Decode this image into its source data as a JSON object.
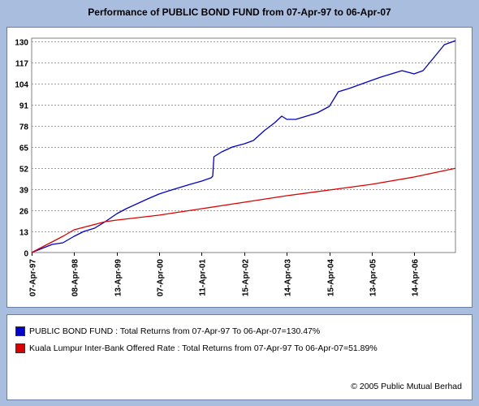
{
  "chart_data": {
    "type": "line",
    "title": "Performance of PUBLIC BOND FUND from 07-Apr-97 to 06-Apr-07",
    "xlabel": "",
    "ylabel": "",
    "x_start": "07-Apr-97",
    "x_end": "06-Apr-07",
    "x_ticks": [
      "07-Apr-97",
      "08-Apr-98",
      "13-Apr-99",
      "07-Apr-00",
      "11-Apr-01",
      "15-Apr-02",
      "14-Apr-03",
      "15-Apr-04",
      "13-Apr-05",
      "14-Apr-06"
    ],
    "y_ticks": [
      0,
      13,
      26,
      39,
      52,
      65,
      78,
      91,
      104,
      117,
      130
    ],
    "ylim": [
      0,
      132
    ],
    "grid": true,
    "legend_position": "bottom",
    "series": [
      {
        "name": "PUBLIC BOND FUND",
        "color": "#0000cc",
        "points": [
          [
            "07-Apr-97",
            0
          ],
          [
            "01-Oct-97",
            5
          ],
          [
            "01-Jan-98",
            6
          ],
          [
            "08-Apr-98",
            10
          ],
          [
            "01-Jul-98",
            13
          ],
          [
            "01-Oct-98",
            15
          ],
          [
            "01-Jan-99",
            19
          ],
          [
            "13-Apr-99",
            24
          ],
          [
            "01-Jul-99",
            27
          ],
          [
            "01-Jan-00",
            33
          ],
          [
            "07-Apr-00",
            36
          ],
          [
            "01-Jul-00",
            38
          ],
          [
            "01-Jan-01",
            42
          ],
          [
            "11-Apr-01",
            44
          ],
          [
            "01-Jul-01",
            46
          ],
          [
            "15-Jul-01",
            47
          ],
          [
            "25-Jul-01",
            59
          ],
          [
            "01-Oct-01",
            62
          ],
          [
            "01-Jan-02",
            65
          ],
          [
            "15-Apr-02",
            67
          ],
          [
            "01-Jul-02",
            69
          ],
          [
            "01-Oct-02",
            75
          ],
          [
            "01-Jan-03",
            80
          ],
          [
            "01-Mar-03",
            84
          ],
          [
            "14-Apr-03",
            82
          ],
          [
            "01-Jul-03",
            82
          ],
          [
            "01-Oct-03",
            84
          ],
          [
            "01-Jan-04",
            86
          ],
          [
            "15-Apr-04",
            90
          ],
          [
            "01-Jul-04",
            99
          ],
          [
            "01-Oct-04",
            101
          ],
          [
            "13-Apr-05",
            106
          ],
          [
            "01-Jul-05",
            108
          ],
          [
            "01-Jan-06",
            112
          ],
          [
            "14-Apr-06",
            110
          ],
          [
            "01-Jul-06",
            112
          ],
          [
            "01-Oct-06",
            120
          ],
          [
            "01-Jan-07",
            128
          ],
          [
            "06-Apr-07",
            130.47
          ]
        ]
      },
      {
        "name": "Kuala Lumpur Inter-Bank Offered Rate",
        "color": "#dd0000",
        "points": [
          [
            "07-Apr-97",
            0
          ],
          [
            "01-Jan-98",
            10
          ],
          [
            "08-Apr-98",
            14
          ],
          [
            "01-Jan-99",
            19
          ],
          [
            "13-Apr-99",
            20
          ],
          [
            "07-Apr-00",
            23
          ],
          [
            "11-Apr-01",
            27
          ],
          [
            "15-Apr-02",
            31
          ],
          [
            "14-Apr-03",
            35
          ],
          [
            "15-Apr-04",
            38.5
          ],
          [
            "13-Apr-05",
            42
          ],
          [
            "14-Apr-06",
            46.5
          ],
          [
            "06-Apr-07",
            51.89
          ]
        ]
      }
    ]
  },
  "legend": {
    "items": [
      {
        "color": "#0000cc",
        "text": "PUBLIC BOND FUND : Total Returns from 07-Apr-97 To 06-Apr-07=130.47%"
      },
      {
        "color": "#dd0000",
        "text": "Kuala Lumpur Inter-Bank Offered Rate : Total Returns from 07-Apr-97 To 06-Apr-07=51.89%"
      }
    ]
  },
  "footer": {
    "copyright": "© 2005 Public Mutual Berhad"
  }
}
